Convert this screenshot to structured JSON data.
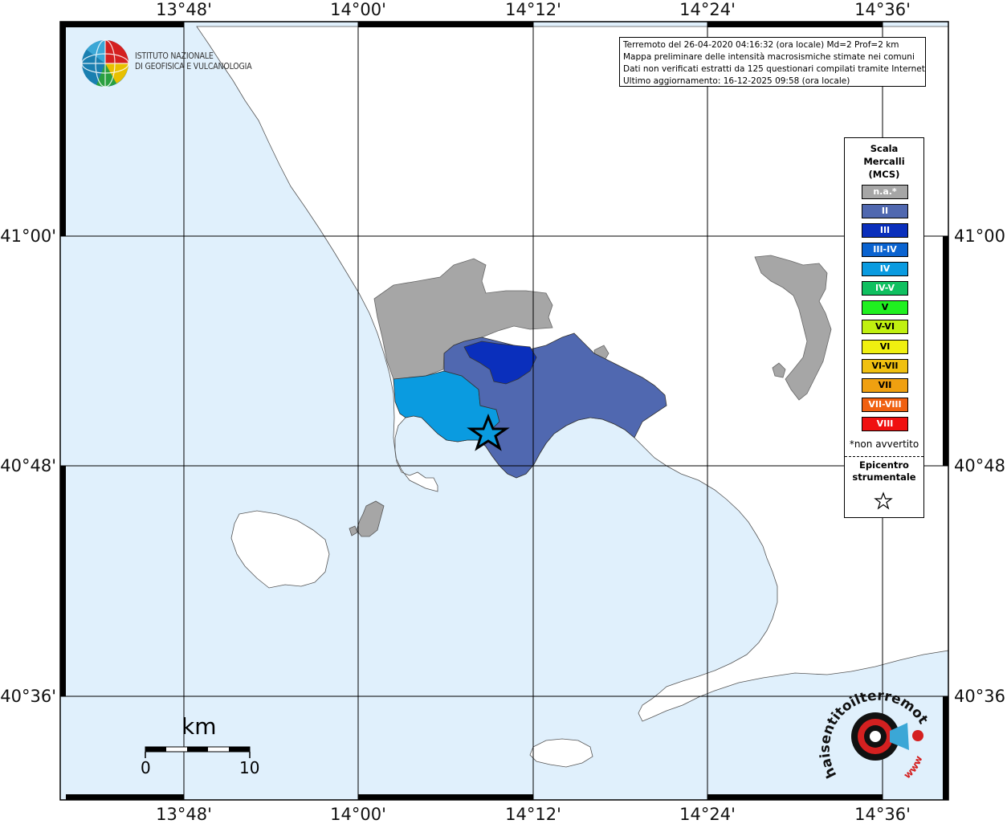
{
  "map": {
    "top_lon_labels": [
      "13°48'",
      "14°00'",
      "14°12'",
      "14°24'",
      "14°36'"
    ],
    "bottom_lon_labels": [
      "13°48'",
      "14°00'",
      "14°12'",
      "14°24'",
      "14°36'"
    ],
    "left_lat_labels": [
      "41°00'",
      "40°48'",
      "40°36'"
    ],
    "right_lat_labels": [
      "41°00'",
      "40°48'",
      "40°36'"
    ],
    "colors": {
      "sea": "#e0f0fc",
      "land": "#ffffff",
      "na": "#a6a6a6",
      "II": "#5068b0",
      "III": "#0a2fbc",
      "IV": "#0a9be0"
    }
  },
  "logo": {
    "line1": "ISTITUTO NAZIONALE",
    "line2": "DI GEOFISICA E VULCANOLOGIA",
    "icon": "ingv-globe-logo"
  },
  "info": {
    "line1": "Terremoto del 26-04-2020 04:16:32 (ora locale) Md=2 Prof=2 km",
    "line2": "Mappa preliminare delle intensità macrosismiche stimate nei comuni",
    "line3": "Dati non verificati estratti da 125 questionari compilati tramite Internet.",
    "line4": "Ultimo aggiornamento: 16-12-2025 09:58 (ora locale)"
  },
  "legend": {
    "title_line1": "Scala",
    "title_line2": "Mercalli",
    "title_line3": "(MCS)",
    "items": [
      {
        "label": "n.a.*",
        "color": "#a6a6a6"
      },
      {
        "label": "II",
        "color": "#5068b0"
      },
      {
        "label": "III",
        "color": "#0a2fbc"
      },
      {
        "label": "III-IV",
        "color": "#0a63d0"
      },
      {
        "label": "IV",
        "color": "#0a9be0"
      },
      {
        "label": "IV-V",
        "color": "#10c060"
      },
      {
        "label": "V",
        "color": "#20f020"
      },
      {
        "label": "V-VI",
        "color": "#c0f010"
      },
      {
        "label": "VI",
        "color": "#f0f010"
      },
      {
        "label": "VI-VII",
        "color": "#f0c010"
      },
      {
        "label": "VII",
        "color": "#f0a010"
      },
      {
        "label": "VII-VIII",
        "color": "#f06010"
      },
      {
        "label": "VIII",
        "color": "#f01010"
      }
    ],
    "note": "*non avvertito",
    "epicenter_line1": "Epicentro",
    "epicenter_line2": "strumentale",
    "epicenter_icon": "star-icon"
  },
  "scalebar": {
    "unit": "km",
    "start": "0",
    "end": "10"
  },
  "hsl_logo": {
    "text": "haisentitoilterremoto.it",
    "url_text": "www",
    "icon": "megaphone-target-icon"
  }
}
